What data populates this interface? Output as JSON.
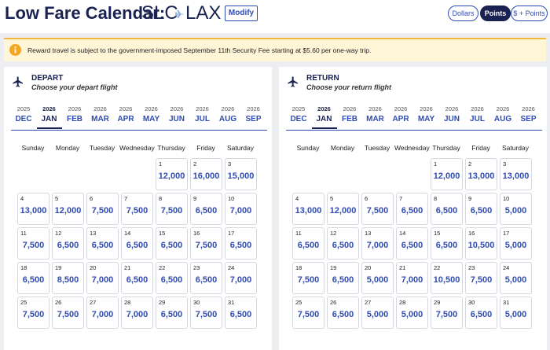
{
  "header": {
    "title": "Low Fare Calendar:",
    "origin": "SLC",
    "destination": "LAX",
    "modify": "Modify",
    "fare_types": [
      "Dollars",
      "Points",
      "$ + Points"
    ],
    "selected_fare_type": "Points"
  },
  "notice": "Reward travel is subject to the government-imposed September 11th Security Fee starting at $5.60 per one-way trip.",
  "weekdays": [
    "Sunday",
    "Monday",
    "Tuesday",
    "Wednesday",
    "Thursday",
    "Friday",
    "Saturday"
  ],
  "panels": [
    {
      "title": "DEPART",
      "subtitle": "Choose your depart flight",
      "months": [
        {
          "year": "2025",
          "month": "DEC"
        },
        {
          "year": "2026",
          "month": "JAN"
        },
        {
          "year": "2026",
          "month": "FEB"
        },
        {
          "year": "2026",
          "month": "MAR"
        },
        {
          "year": "2026",
          "month": "APR"
        },
        {
          "year": "2026",
          "month": "MAY"
        },
        {
          "year": "2026",
          "month": "JUN"
        },
        {
          "year": "2026",
          "month": "JUL"
        },
        {
          "year": "2026",
          "month": "AUG"
        },
        {
          "year": "2026",
          "month": "SEP"
        }
      ],
      "selected_month": "JAN",
      "days": [
        {
          "day": 1,
          "fare": "12,000"
        },
        {
          "day": 2,
          "fare": "16,000"
        },
        {
          "day": 3,
          "fare": "15,000"
        },
        {
          "day": 4,
          "fare": "13,000"
        },
        {
          "day": 5,
          "fare": "12,000"
        },
        {
          "day": 6,
          "fare": "7,500"
        },
        {
          "day": 7,
          "fare": "7,500"
        },
        {
          "day": 8,
          "fare": "7,500"
        },
        {
          "day": 9,
          "fare": "6,500"
        },
        {
          "day": 10,
          "fare": "7,000"
        },
        {
          "day": 11,
          "fare": "7,500"
        },
        {
          "day": 12,
          "fare": "6,500"
        },
        {
          "day": 13,
          "fare": "6,500"
        },
        {
          "day": 14,
          "fare": "6,500"
        },
        {
          "day": 15,
          "fare": "6,500"
        },
        {
          "day": 16,
          "fare": "7,500"
        },
        {
          "day": 17,
          "fare": "6,500"
        },
        {
          "day": 18,
          "fare": "6,500"
        },
        {
          "day": 19,
          "fare": "8,500"
        },
        {
          "day": 20,
          "fare": "7,000"
        },
        {
          "day": 21,
          "fare": "6,500"
        },
        {
          "day": 22,
          "fare": "6,500"
        },
        {
          "day": 23,
          "fare": "6,500"
        },
        {
          "day": 24,
          "fare": "7,000"
        },
        {
          "day": 25,
          "fare": "7,500"
        },
        {
          "day": 26,
          "fare": "7,500"
        },
        {
          "day": 27,
          "fare": "7,000"
        },
        {
          "day": 28,
          "fare": "7,000"
        },
        {
          "day": 29,
          "fare": "6,500"
        },
        {
          "day": 30,
          "fare": "7,500"
        },
        {
          "day": 31,
          "fare": "6,500"
        }
      ]
    },
    {
      "title": "RETURN",
      "subtitle": "Choose your return flight",
      "months": [
        {
          "year": "2025",
          "month": "DEC"
        },
        {
          "year": "2026",
          "month": "JAN"
        },
        {
          "year": "2026",
          "month": "FEB"
        },
        {
          "year": "2026",
          "month": "MAR"
        },
        {
          "year": "2026",
          "month": "APR"
        },
        {
          "year": "2026",
          "month": "MAY"
        },
        {
          "year": "2026",
          "month": "JUN"
        },
        {
          "year": "2026",
          "month": "JUL"
        },
        {
          "year": "2026",
          "month": "AUG"
        },
        {
          "year": "2026",
          "month": "SEP"
        }
      ],
      "selected_month": "JAN",
      "days": [
        {
          "day": 1,
          "fare": "12,000"
        },
        {
          "day": 2,
          "fare": "13,000"
        },
        {
          "day": 3,
          "fare": "13,000"
        },
        {
          "day": 4,
          "fare": "13,000"
        },
        {
          "day": 5,
          "fare": "12,000"
        },
        {
          "day": 6,
          "fare": "7,500"
        },
        {
          "day": 7,
          "fare": "6,500"
        },
        {
          "day": 8,
          "fare": "6,500"
        },
        {
          "day": 9,
          "fare": "6,500"
        },
        {
          "day": 10,
          "fare": "5,000"
        },
        {
          "day": 11,
          "fare": "6,500"
        },
        {
          "day": 12,
          "fare": "6,500"
        },
        {
          "day": 13,
          "fare": "7,000"
        },
        {
          "day": 14,
          "fare": "6,500"
        },
        {
          "day": 15,
          "fare": "6,500"
        },
        {
          "day": 16,
          "fare": "10,500"
        },
        {
          "day": 17,
          "fare": "5,000"
        },
        {
          "day": 18,
          "fare": "7,500"
        },
        {
          "day": 19,
          "fare": "6,500"
        },
        {
          "day": 20,
          "fare": "5,000"
        },
        {
          "day": 21,
          "fare": "7,000"
        },
        {
          "day": 22,
          "fare": "10,500"
        },
        {
          "day": 23,
          "fare": "7,500"
        },
        {
          "day": 24,
          "fare": "5,000"
        },
        {
          "day": 25,
          "fare": "7,500"
        },
        {
          "day": 26,
          "fare": "6,500"
        },
        {
          "day": 27,
          "fare": "5,000"
        },
        {
          "day": 28,
          "fare": "5,000"
        },
        {
          "day": 29,
          "fare": "7,500"
        },
        {
          "day": 30,
          "fare": "6,500"
        },
        {
          "day": 31,
          "fare": "5,000"
        }
      ]
    }
  ]
}
